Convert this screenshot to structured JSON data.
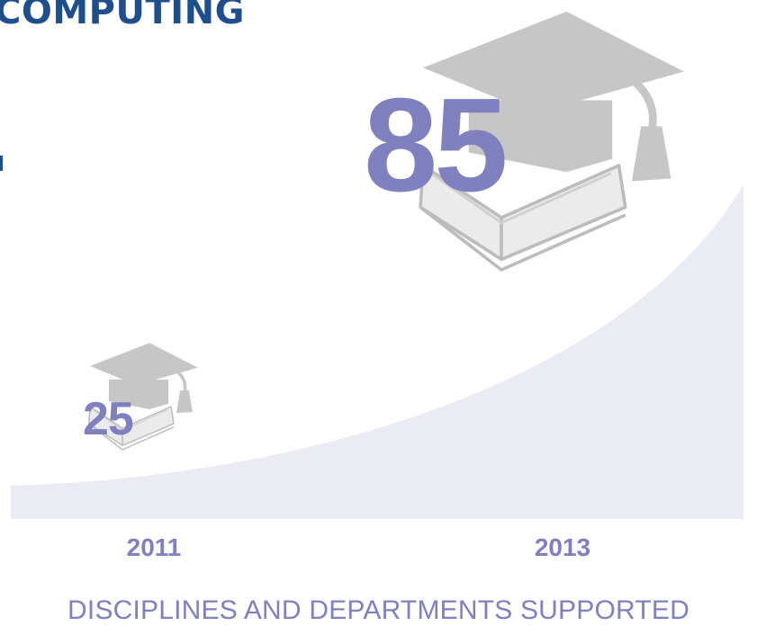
{
  "header": {
    "title": "COMPUTING"
  },
  "chart_data": {
    "type": "area",
    "title": "",
    "caption": "DISCIPLINES AND DEPARTMENTS SUPPORTED",
    "categories": [
      "2011",
      "2013"
    ],
    "values": [
      25,
      85
    ],
    "ylim": [
      0,
      85
    ],
    "grid": false,
    "legend": "none",
    "icon": "graduation-cap-book-icon",
    "colors": {
      "area": "#ebebf4",
      "label": "#8080bf",
      "cap": "#c6c6c6",
      "book": "#ebebeb",
      "book_line": "#bcbcbc",
      "title": "#1f4e8c"
    }
  }
}
